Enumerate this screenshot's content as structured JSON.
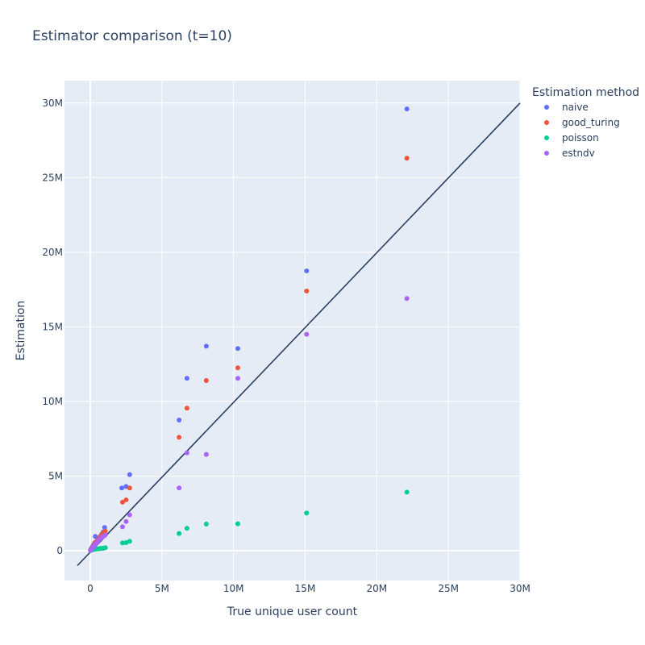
{
  "chart_data": {
    "type": "scatter",
    "title": "Estimator comparison (t=10)",
    "xlabel": "True unique user count",
    "ylabel": "Estimation",
    "xlim": [
      -1800000,
      30000000
    ],
    "ylim": [
      -2000000,
      31500000
    ],
    "x_ticks": [
      0,
      5000000,
      10000000,
      15000000,
      20000000,
      25000000,
      30000000
    ],
    "x_tick_labels": [
      "0",
      "5M",
      "10M",
      "15M",
      "20M",
      "25M",
      "30M"
    ],
    "y_ticks": [
      0,
      5000000,
      10000000,
      15000000,
      20000000,
      25000000,
      30000000
    ],
    "y_tick_labels": [
      "0",
      "5M",
      "10M",
      "15M",
      "20M",
      "25M",
      "30M"
    ],
    "grid": true,
    "legend_title": "Estimation method",
    "legend_position": "top-right",
    "reference_line": {
      "x": [
        -900000,
        30000000
      ],
      "y": [
        -1000000,
        30000000
      ],
      "color": "#2a3f5f"
    },
    "series": [
      {
        "name": "naive",
        "color": "#636efa",
        "x": [
          20000,
          50000,
          100000,
          150000,
          200000,
          250000,
          300000,
          350000,
          400000,
          500000,
          600000,
          700000,
          800000,
          900000,
          1000000,
          2200000,
          2500000,
          2750000,
          6200000,
          6750000,
          8100000,
          10300000,
          15100000,
          22100000
        ],
        "y": [
          40000,
          100000,
          180000,
          260000,
          350000,
          420000,
          500000,
          950000,
          560000,
          680000,
          820000,
          960000,
          1100000,
          1250000,
          1550000,
          4200000,
          4300000,
          5100000,
          8750000,
          11550000,
          13700000,
          13550000,
          18750000,
          29600000
        ]
      },
      {
        "name": "good_turing",
        "color": "#ef553b",
        "x": [
          20000,
          50000,
          100000,
          150000,
          200000,
          250000,
          300000,
          350000,
          450000,
          550000,
          650000,
          750000,
          850000,
          950000,
          1050000,
          2250000,
          2500000,
          2750000,
          6200000,
          6750000,
          8100000,
          10300000,
          15100000,
          22100000
        ],
        "y": [
          30000,
          80000,
          150000,
          220000,
          290000,
          360000,
          440000,
          550000,
          620000,
          740000,
          880000,
          1000000,
          1120000,
          1200000,
          1300000,
          3250000,
          3400000,
          4200000,
          7600000,
          9550000,
          11400000,
          12250000,
          17400000,
          26300000
        ]
      },
      {
        "name": "poisson",
        "color": "#00cc96",
        "x": [
          20000,
          50000,
          100000,
          150000,
          200000,
          250000,
          300000,
          350000,
          450000,
          550000,
          650000,
          750000,
          850000,
          950000,
          1050000,
          2250000,
          2500000,
          2750000,
          6200000,
          6750000,
          8100000,
          10300000,
          15100000,
          22100000
        ],
        "y": [
          10000,
          30000,
          50000,
          60000,
          80000,
          90000,
          100000,
          110000,
          120000,
          130000,
          140000,
          150000,
          160000,
          170000,
          200000,
          520000,
          540000,
          630000,
          1150000,
          1500000,
          1780000,
          1800000,
          2520000,
          3920000
        ]
      },
      {
        "name": "estndv",
        "color": "#ab63fa",
        "x": [
          20000,
          50000,
          100000,
          150000,
          200000,
          250000,
          300000,
          350000,
          450000,
          550000,
          650000,
          750000,
          850000,
          950000,
          1050000,
          2250000,
          2500000,
          2750000,
          6200000,
          6750000,
          8100000,
          10300000,
          15100000,
          22100000
        ],
        "y": [
          20000,
          60000,
          120000,
          180000,
          240000,
          300000,
          360000,
          420000,
          520000,
          640000,
          760000,
          850000,
          920000,
          980000,
          1050000,
          1600000,
          1950000,
          2400000,
          4200000,
          6550000,
          6450000,
          11550000,
          14500000,
          16900000
        ]
      }
    ]
  }
}
